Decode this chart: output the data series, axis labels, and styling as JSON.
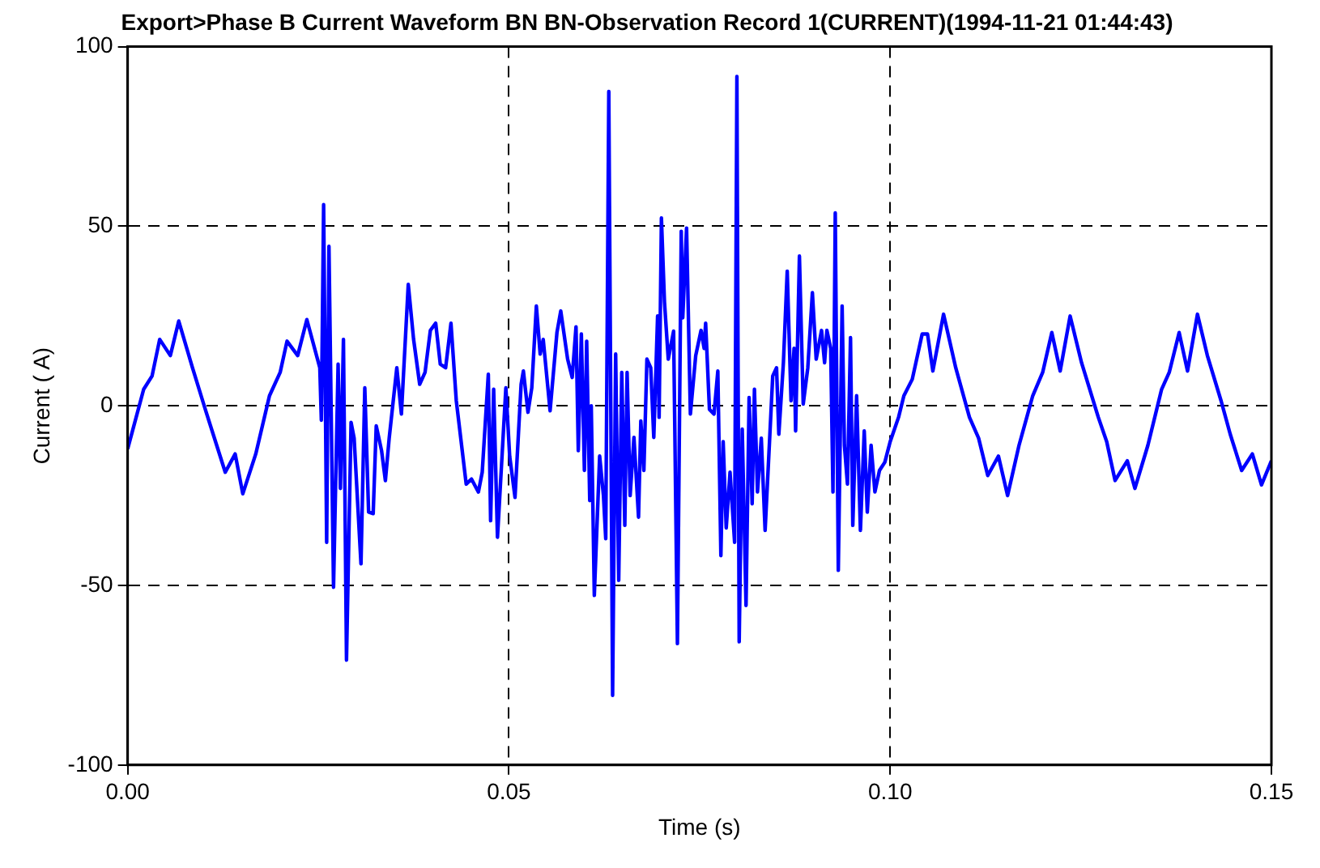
{
  "chart_data": {
    "type": "line",
    "title": "Export>Phase B Current Waveform BN BN-Observation Record 1(CURRENT)(1994-11-21 01:44:43)",
    "xlabel": "Time (s)",
    "ylabel": "Current ( A)",
    "xlim": [
      0,
      0.15
    ],
    "xticks": [
      {
        "value": 0,
        "label": "0.00"
      },
      {
        "value": 0.05,
        "label": "0.05"
      },
      {
        "value": 0.1,
        "label": "0.10"
      },
      {
        "value": 0.15,
        "label": "0.15"
      }
    ],
    "ylim": [
      -100,
      100
    ],
    "yticks": [
      -100,
      -50,
      0,
      50,
      100
    ],
    "grid": true,
    "legend": false,
    "marker": "none",
    "line_style": "solid",
    "series": [
      {
        "color": "#0000ff",
        "x": [
          0,
          0.0021,
          0.0032,
          0.0042,
          0.0056,
          0.0067,
          0.0085,
          0.0103,
          0.0128,
          0.0141,
          0.0151,
          0.0168,
          0.0186,
          0.02,
          0.0209,
          0.0223,
          0.0235,
          0.0252,
          0.0254,
          0.0257,
          0.0261,
          0.0264,
          0.027,
          0.0276,
          0.0279,
          0.0283,
          0.0287,
          0.0293,
          0.0297,
          0.0306,
          0.0311,
          0.0316,
          0.0322,
          0.0326,
          0.0333,
          0.0338,
          0.0343,
          0.0353,
          0.0359,
          0.0368,
          0.0375,
          0.0383,
          0.039,
          0.0397,
          0.0404,
          0.041,
          0.0417,
          0.0424,
          0.0431,
          0.0444,
          0.0451,
          0.046,
          0.0465,
          0.0473,
          0.0476,
          0.048,
          0.0485,
          0.0496,
          0.0501,
          0.0508,
          0.0516,
          0.0519,
          0.0525,
          0.053,
          0.0536,
          0.0541,
          0.0545,
          0.0554,
          0.0563,
          0.0568,
          0.0577,
          0.0583,
          0.0588,
          0.0591,
          0.0595,
          0.0599,
          0.0602,
          0.0606,
          0.0608,
          0.0612,
          0.0619,
          0.0624,
          0.0627,
          0.0631,
          0.0636,
          0.064,
          0.0644,
          0.0648,
          0.0652,
          0.0655,
          0.0659,
          0.0664,
          0.067,
          0.0673,
          0.0677,
          0.0681,
          0.0686,
          0.069,
          0.0695,
          0.0697,
          0.07,
          0.0704,
          0.0709,
          0.0716,
          0.0721,
          0.0726,
          0.0728,
          0.0733,
          0.0738,
          0.0745,
          0.0752,
          0.0756,
          0.0758,
          0.0763,
          0.0769,
          0.0774,
          0.0778,
          0.0781,
          0.0785,
          0.079,
          0.0796,
          0.0799,
          0.0802,
          0.0806,
          0.0811,
          0.0815,
          0.0819,
          0.0822,
          0.0826,
          0.0831,
          0.0836,
          0.0842,
          0.0846,
          0.0851,
          0.0854,
          0.086,
          0.0865,
          0.087,
          0.0874,
          0.0876,
          0.0881,
          0.0886,
          0.0892,
          0.0898,
          0.0903,
          0.091,
          0.0914,
          0.0917,
          0.0922,
          0.0925,
          0.0928,
          0.0932,
          0.0937,
          0.094,
          0.0944,
          0.0948,
          0.0951,
          0.0956,
          0.0961,
          0.0966,
          0.097,
          0.0975,
          0.098,
          0.0986,
          0.0993,
          0.1,
          0.1011,
          0.1018,
          0.1029,
          0.1042,
          0.1049,
          0.1056,
          0.107,
          0.1086,
          0.1104,
          0.1116,
          0.1128,
          0.1142,
          0.1154,
          0.1169,
          0.1187,
          0.12,
          0.1212,
          0.1223,
          0.1236,
          0.1251,
          0.1273,
          0.1284,
          0.1295,
          0.1311,
          0.1321,
          0.1338,
          0.1356,
          0.1366,
          0.1379,
          0.139,
          0.1403,
          0.1416,
          0.1434,
          0.1446,
          0.1461,
          0.1475,
          0.1487,
          0.15
        ],
        "values": [
          -12,
          4.6,
          8.3,
          18.5,
          14,
          23.6,
          10.6,
          -1.8,
          -18.5,
          -13.4,
          -24.5,
          -13.4,
          2.8,
          9.3,
          18,
          14,
          24,
          10.6,
          -4,
          56,
          -38,
          44.4,
          -50.5,
          11.6,
          -23,
          18.5,
          -70.8,
          -4.6,
          -9,
          -44,
          5,
          -29.6,
          -30,
          -5.6,
          -12.5,
          -20.8,
          -9,
          10.6,
          -2.3,
          33.8,
          18.5,
          6,
          9.3,
          21,
          23,
          11.6,
          10.6,
          23,
          1.4,
          -21.8,
          -20.4,
          -24,
          -18.5,
          8.8,
          -32,
          4.6,
          -36.6,
          5,
          -14,
          -25.5,
          6,
          9.7,
          -1.8,
          5,
          27.8,
          14.4,
          18.5,
          -1.4,
          20.4,
          26.4,
          13,
          7.9,
          22,
          -12.5,
          20,
          -18,
          18,
          -26.4,
          0,
          -52.8,
          -14,
          -25,
          -37,
          87.5,
          -80.6,
          14.4,
          -48.6,
          9.3,
          -33.3,
          9.3,
          -25,
          -8.8,
          -31,
          -4.2,
          -18,
          13,
          10.6,
          -8.8,
          25,
          -3.2,
          52.3,
          29,
          13,
          20.8,
          -66.2,
          48.6,
          24.5,
          49.5,
          -2.3,
          14,
          21,
          16,
          23,
          -1,
          -2.3,
          9.7,
          -41.7,
          -10,
          -34,
          -18.5,
          -38,
          91.7,
          -65.7,
          -6.5,
          -55.6,
          2.3,
          -27.3,
          4.6,
          -24,
          -9,
          -34.7,
          -9,
          8.3,
          10.6,
          -7.9,
          12,
          37.5,
          1.4,
          16,
          -7,
          41.7,
          0.5,
          10.6,
          31.5,
          13,
          21,
          12,
          21,
          16,
          -24,
          53.7,
          -45.8,
          27.8,
          -11,
          -21.8,
          19,
          -33.3,
          2.8,
          -34.7,
          -7,
          -29.6,
          -11,
          -24,
          -18,
          -15.7,
          -10,
          -3.2,
          2.8,
          7.4,
          20,
          20,
          9.7,
          25.5,
          10.6,
          -3.2,
          -9,
          -19.4,
          -14,
          -25,
          -11,
          2.8,
          9.3,
          20.4,
          9.7,
          25,
          12,
          -3.2,
          -10,
          -20.8,
          -15.3,
          -23,
          -11,
          4.6,
          9.3,
          20.4,
          9.7,
          25.5,
          14,
          1.4,
          -7.9,
          -18,
          -13.4,
          -22,
          -15.3
        ]
      }
    ]
  }
}
